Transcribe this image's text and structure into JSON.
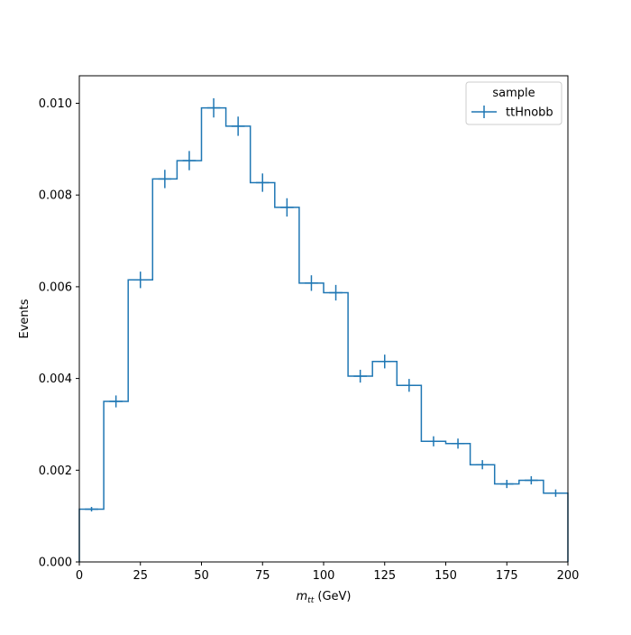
{
  "chart_data": {
    "type": "histogram",
    "xlabel_main": "m",
    "xlabel_sub": "tt",
    "xlabel_unit": " (GeV)",
    "ylabel": "Events",
    "xlim": [
      0,
      200
    ],
    "ylim": [
      0,
      0.0106
    ],
    "x_ticks": [
      0,
      25,
      50,
      75,
      100,
      125,
      150,
      175,
      200
    ],
    "y_ticks": [
      0.0,
      0.002,
      0.004,
      0.006,
      0.008,
      0.01
    ],
    "y_tick_labels": [
      "0.000",
      "0.002",
      "0.004",
      "0.006",
      "0.008",
      "0.010"
    ],
    "bin_edges": [
      0,
      10,
      20,
      30,
      40,
      50,
      60,
      70,
      80,
      90,
      100,
      110,
      120,
      130,
      140,
      150,
      160,
      170,
      180,
      190,
      200
    ],
    "series": [
      {
        "name": "ttHnobb",
        "color": "#1f77b4",
        "values": [
          0.00115,
          0.0035,
          0.00615,
          0.00835,
          0.00875,
          0.0099,
          0.0095,
          0.00827,
          0.00773,
          0.00608,
          0.00587,
          0.00405,
          0.00437,
          0.00385,
          0.00263,
          0.00258,
          0.00212,
          0.0017,
          0.00178,
          0.0015
        ],
        "errors": [
          5e-05,
          0.00013,
          0.00018,
          0.0002,
          0.00021,
          0.00021,
          0.00021,
          0.0002,
          0.0002,
          0.00017,
          0.00017,
          0.00014,
          0.00015,
          0.00014,
          0.00011,
          0.00011,
          0.0001,
          9e-05,
          9e-05,
          8e-05
        ]
      }
    ],
    "legend": {
      "title": "sample",
      "placement": "top-right"
    }
  }
}
